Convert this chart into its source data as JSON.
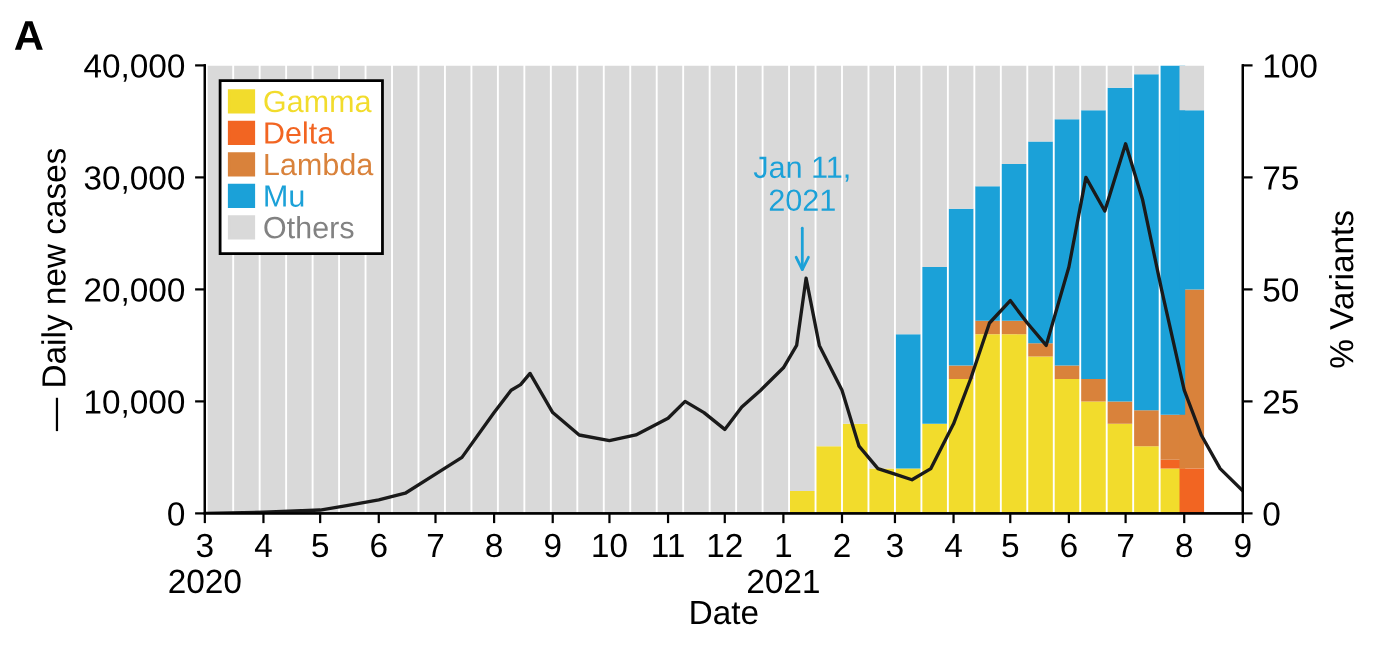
{
  "chart_data": {
    "type": "bar",
    "stacked": true,
    "xlabel": "Date",
    "ylabel": "— Daily new cases",
    "y2label": "% Variants",
    "legend": "top left",
    "grid": false,
    "xlim": [
      "2020-03-01",
      "2021-09-01"
    ],
    "xticks": [
      {
        "value": "2020-03-01",
        "label": "3\n2020"
      },
      {
        "value": "2020-04-01",
        "label": "4"
      },
      {
        "value": "2020-05-01",
        "label": "5"
      },
      {
        "value": "2020-06-01",
        "label": "6"
      },
      {
        "value": "2020-07-01",
        "label": "7"
      },
      {
        "value": "2020-08-01",
        "label": "8"
      },
      {
        "value": "2020-09-01",
        "label": "9"
      },
      {
        "value": "2020-10-01",
        "label": "10"
      },
      {
        "value": "2020-11-01",
        "label": "11"
      },
      {
        "value": "2020-12-01",
        "label": "12"
      },
      {
        "value": "2021-01-01",
        "label": "1\n2021"
      },
      {
        "value": "2021-02-01",
        "label": "2"
      },
      {
        "value": "2021-03-01",
        "label": "3"
      },
      {
        "value": "2021-04-01",
        "label": "4"
      },
      {
        "value": "2021-05-01",
        "label": "5"
      },
      {
        "value": "2021-06-01",
        "label": "6"
      },
      {
        "value": "2021-07-01",
        "label": "7"
      },
      {
        "value": "2021-08-01",
        "label": "8"
      },
      {
        "value": "2021-09-01",
        "label": "9"
      }
    ],
    "ylim": [
      0,
      40000
    ],
    "yticks": [
      0,
      {
        "value": 10000,
        "label": "10,000"
      },
      {
        "value": 20000,
        "label": "20,000"
      },
      {
        "value": 30000,
        "label": "30,000"
      },
      {
        "value": 40000,
        "label": "40,000"
      }
    ],
    "y2lim": [
      0,
      100
    ],
    "y2ticks": [
      0,
      25,
      50,
      75,
      100
    ],
    "x": [
      "2020-03-09",
      "2020-03-23",
      "2020-04-06",
      "2020-04-20",
      "2020-05-04",
      "2020-05-18",
      "2020-06-01",
      "2020-06-15",
      "2020-06-29",
      "2020-07-13",
      "2020-07-27",
      "2020-08-10",
      "2020-08-24",
      "2020-09-07",
      "2020-09-21",
      "2020-10-05",
      "2020-10-19",
      "2020-11-02",
      "2020-11-16",
      "2020-11-30",
      "2020-12-14",
      "2020-12-28",
      "2021-01-11",
      "2021-01-25",
      "2021-02-08",
      "2021-02-22",
      "2021-03-08",
      "2021-03-22",
      "2021-04-05",
      "2021-04-19",
      "2021-05-03",
      "2021-05-17",
      "2021-05-31",
      "2021-06-14",
      "2021-06-28",
      "2021-07-12",
      "2021-07-26",
      "2021-08-05"
    ],
    "annotations": [
      "A",
      {
        "text": "Jan 11,\n2021",
        "x": "2021-01-11",
        "y": 21000
      }
    ],
    "series": [
      {
        "name": "Gamma",
        "color": "#f2dc2c",
        "axis": "y2",
        "values": [
          0,
          0,
          0,
          0,
          0,
          0,
          0,
          0,
          0,
          0,
          0,
          0,
          0,
          0,
          0,
          0,
          0,
          0,
          0,
          0,
          0,
          0,
          5,
          15,
          20,
          10,
          10,
          20,
          30,
          40,
          40,
          35,
          30,
          25,
          20,
          15,
          10,
          0
        ]
      },
      {
        "name": "Delta",
        "color": "#f26522",
        "axis": "y2",
        "values": [
          0,
          0,
          0,
          0,
          0,
          0,
          0,
          0,
          0,
          0,
          0,
          0,
          0,
          0,
          0,
          0,
          0,
          0,
          0,
          0,
          0,
          0,
          0,
          0,
          0,
          0,
          0,
          0,
          0,
          0,
          0,
          0,
          0,
          0,
          0,
          0,
          2,
          10
        ]
      },
      {
        "name": "Lambda",
        "color": "#d9823b",
        "axis": "y2",
        "values": [
          0,
          0,
          0,
          0,
          0,
          0,
          0,
          0,
          0,
          0,
          0,
          0,
          0,
          0,
          0,
          0,
          0,
          0,
          0,
          0,
          0,
          0,
          0,
          0,
          0,
          0,
          0,
          0,
          3,
          3,
          3,
          3,
          3,
          5,
          5,
          8,
          10,
          40
        ]
      },
      {
        "name": "Mu",
        "color": "#1ba1d8",
        "axis": "y2",
        "values": [
          0,
          0,
          0,
          0,
          0,
          0,
          0,
          0,
          0,
          0,
          0,
          0,
          0,
          0,
          0,
          0,
          0,
          0,
          0,
          0,
          0,
          0,
          0,
          0,
          0,
          0,
          30,
          35,
          35,
          30,
          35,
          45,
          55,
          60,
          70,
          75,
          78,
          40
        ]
      },
      {
        "name": "Others",
        "color": "#d9d9d9",
        "axis": "y2",
        "values": [
          100,
          100,
          100,
          100,
          100,
          100,
          100,
          100,
          100,
          100,
          100,
          100,
          100,
          100,
          100,
          100,
          100,
          100,
          100,
          100,
          100,
          100,
          95,
          85,
          80,
          90,
          60,
          45,
          32,
          27,
          22,
          17,
          12,
          10,
          5,
          2,
          0,
          10
        ]
      },
      {
        "type": "line",
        "color": "#1a1a1a",
        "x": [
          "2020-03-01",
          "2020-04-01",
          "2020-05-01",
          "2020-05-15",
          "2020-06-01",
          "2020-06-15",
          "2020-07-01",
          "2020-07-15",
          "2020-08-01",
          "2020-08-10",
          "2020-08-15",
          "2020-08-20",
          "2020-09-01",
          "2020-09-15",
          "2020-10-01",
          "2020-10-15",
          "2020-11-01",
          "2020-11-10",
          "2020-11-20",
          "2020-12-01",
          "2020-12-10",
          "2020-12-20",
          "2021-01-01",
          "2021-01-08",
          "2021-01-13",
          "2021-01-20",
          "2021-02-01",
          "2021-02-10",
          "2021-02-20",
          "2021-03-01",
          "2021-03-10",
          "2021-03-20",
          "2021-04-01",
          "2021-04-10",
          "2021-04-20",
          "2021-05-01",
          "2021-05-10",
          "2021-05-20",
          "2021-06-01",
          "2021-06-10",
          "2021-06-20",
          "2021-07-01",
          "2021-07-10",
          "2021-07-20",
          "2021-08-01",
          "2021-08-10",
          "2021-08-20",
          "2021-09-01"
        ],
        "values": [
          0,
          100,
          300,
          700,
          1200,
          1800,
          3500,
          5000,
          9000,
          11000,
          11500,
          12500,
          9000,
          7000,
          6500,
          7000,
          8500,
          10000,
          9000,
          7500,
          9500,
          11000,
          13000,
          15000,
          21000,
          15000,
          11000,
          6000,
          4000,
          3500,
          3000,
          4000,
          8000,
          12000,
          17000,
          19000,
          17000,
          15000,
          22000,
          30000,
          27000,
          33000,
          28000,
          20000,
          11000,
          7000,
          4000,
          2000
        ]
      }
    ]
  }
}
